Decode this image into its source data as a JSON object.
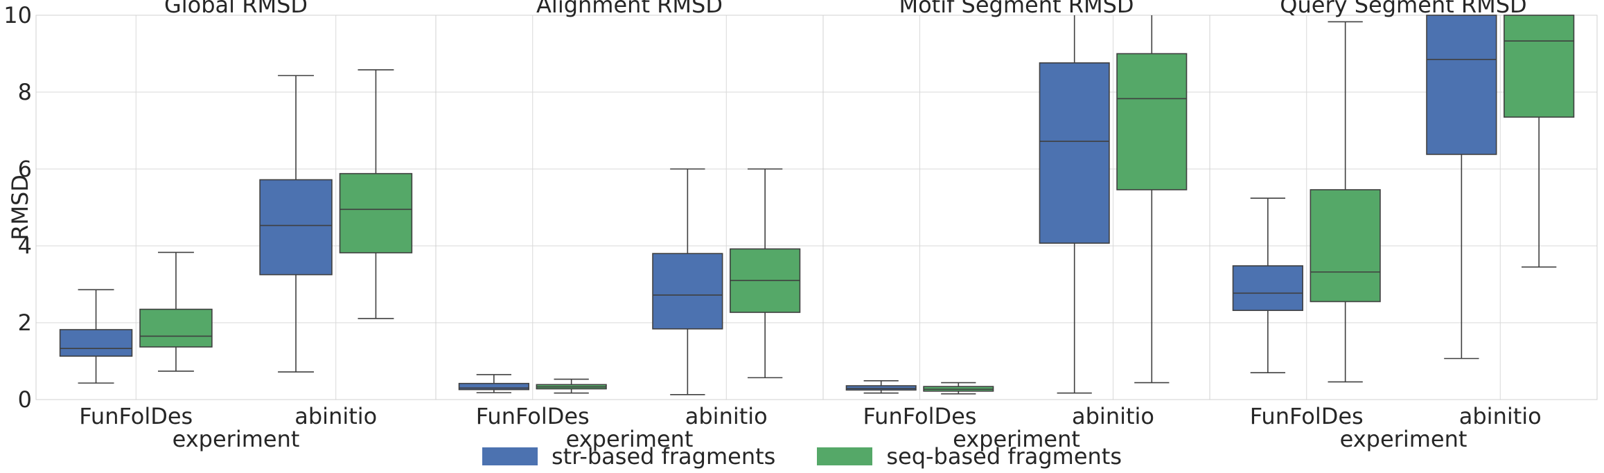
{
  "chart_data": {
    "type": "box",
    "ylabel": "RMSD",
    "ylim": [
      0,
      10
    ],
    "yticks": [
      "0",
      "2",
      "4",
      "6",
      "8",
      "10"
    ],
    "grid": true,
    "legend_position": "bottom-center",
    "categories": [
      "FunFolDes",
      "abinitio"
    ],
    "series": [
      {
        "name": "str-based fragments",
        "color": "#4C72B0"
      },
      {
        "name": "seq-based fragments",
        "color": "#55A868"
      }
    ],
    "panels": [
      {
        "title": "Global RMSD",
        "xlabel": "experiment",
        "boxes": [
          {
            "category": "FunFolDes",
            "series": 0,
            "whislo": 0.43,
            "q1": 1.13,
            "median": 1.33,
            "q3": 1.82,
            "whishi": 2.86
          },
          {
            "category": "FunFolDes",
            "series": 1,
            "whislo": 0.74,
            "q1": 1.37,
            "median": 1.65,
            "q3": 2.35,
            "whishi": 3.83
          },
          {
            "category": "abinitio",
            "series": 0,
            "whislo": 0.72,
            "q1": 3.25,
            "median": 4.53,
            "q3": 5.72,
            "whishi": 8.43
          },
          {
            "category": "abinitio",
            "series": 1,
            "whislo": 2.11,
            "q1": 3.82,
            "median": 4.95,
            "q3": 5.88,
            "whishi": 8.58
          }
        ]
      },
      {
        "title": "Alignment RMSD",
        "xlabel": "experiment",
        "boxes": [
          {
            "category": "FunFolDes",
            "series": 0,
            "whislo": 0.18,
            "q1": 0.26,
            "median": 0.3,
            "q3": 0.42,
            "whishi": 0.65
          },
          {
            "category": "FunFolDes",
            "series": 1,
            "whislo": 0.17,
            "q1": 0.28,
            "median": 0.33,
            "q3": 0.39,
            "whishi": 0.53
          },
          {
            "category": "abinitio",
            "series": 0,
            "whislo": 0.13,
            "q1": 1.84,
            "median": 2.72,
            "q3": 3.8,
            "whishi": 6.0
          },
          {
            "category": "abinitio",
            "series": 1,
            "whislo": 0.57,
            "q1": 2.27,
            "median": 3.1,
            "q3": 3.92,
            "whishi": 6.0
          }
        ]
      },
      {
        "title": "Motif Segment RMSD",
        "xlabel": "experiment",
        "boxes": [
          {
            "category": "FunFolDes",
            "series": 0,
            "whislo": 0.17,
            "q1": 0.25,
            "median": 0.29,
            "q3": 0.36,
            "whishi": 0.49
          },
          {
            "category": "FunFolDes",
            "series": 1,
            "whislo": 0.15,
            "q1": 0.22,
            "median": 0.27,
            "q3": 0.34,
            "whishi": 0.44
          },
          {
            "category": "abinitio",
            "series": 0,
            "whislo": 0.17,
            "q1": 4.07,
            "median": 6.72,
            "q3": 8.76,
            "whishi": 10.5
          },
          {
            "category": "abinitio",
            "series": 1,
            "whislo": 0.44,
            "q1": 5.46,
            "median": 7.83,
            "q3": 9.0,
            "whishi": 10.5
          }
        ]
      },
      {
        "title": "Query Segment RMSD",
        "xlabel": "experiment",
        "boxes": [
          {
            "category": "FunFolDes",
            "series": 0,
            "whislo": 0.7,
            "q1": 2.32,
            "median": 2.77,
            "q3": 3.48,
            "whishi": 5.24
          },
          {
            "category": "FunFolDes",
            "series": 1,
            "whislo": 0.46,
            "q1": 2.55,
            "median": 3.32,
            "q3": 5.46,
            "whishi": 9.83
          },
          {
            "category": "abinitio",
            "series": 0,
            "whislo": 1.07,
            "q1": 6.38,
            "median": 8.85,
            "q3": 10.5,
            "whishi": 10.5
          },
          {
            "category": "abinitio",
            "series": 1,
            "whislo": 3.45,
            "q1": 7.35,
            "median": 9.33,
            "q3": 10.5,
            "whishi": 10.5
          }
        ]
      }
    ]
  },
  "legend": {
    "items": [
      {
        "label": "str-based fragments",
        "color": "#4C72B0"
      },
      {
        "label": "seq-based fragments",
        "color": "#55A868"
      }
    ]
  }
}
